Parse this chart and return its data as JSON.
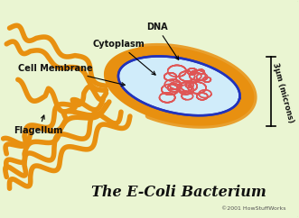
{
  "bg_color": "#eaf5d2",
  "border_color": "#4a9a2a",
  "title": "The E-Coli Bacterium",
  "title_color": "#111111",
  "title_fontsize": 11.5,
  "subtitle": "©2001 HowStuffWorks",
  "cell_body_color": "#d0ecfa",
  "cell_border_color": "#2233bb",
  "flagellum_color": "#e89010",
  "dna_color": "#e05555",
  "label_color": "#111111",
  "measurement": "3μm (microns)"
}
